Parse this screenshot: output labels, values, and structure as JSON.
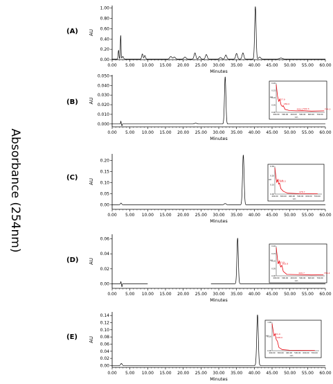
{
  "figure": {
    "y_title": "Absorbance (254nm)"
  },
  "colors": {
    "trace": "#000000",
    "axis": "#000000",
    "inset_line": "#e8000b",
    "inset_frame": "#000000"
  },
  "chart_data": [
    {
      "type": "line",
      "panel_label": "(A)",
      "ylabel": "AU",
      "xlabel": "Minutes",
      "xlim": [
        0,
        60
      ],
      "ylim": [
        0,
        1.05
      ],
      "x_ticks": [
        "0.00",
        "5.00",
        "10.00",
        "15.00",
        "20.00",
        "25.00",
        "30.00",
        "35.00",
        "40.00",
        "45.00",
        "50.00",
        "55.00",
        "60.00"
      ],
      "y_ticks": [
        "0.00",
        "0.20",
        "0.40",
        "0.60",
        "0.80",
        "1.00"
      ],
      "y_tick_values": [
        0,
        0.2,
        0.4,
        0.6,
        0.8,
        1.0
      ],
      "peaks": [
        {
          "rt": 1.8,
          "height": 0.17,
          "width": 0.12
        },
        {
          "rt": 2.4,
          "height": 0.46,
          "width": 0.1
        },
        {
          "rt": 3.0,
          "height": 0.05,
          "width": 0.2
        },
        {
          "rt": 8.5,
          "height": 0.1,
          "width": 0.18
        },
        {
          "rt": 9.2,
          "height": 0.07,
          "width": 0.18
        },
        {
          "rt": 16.5,
          "height": 0.05,
          "width": 0.3
        },
        {
          "rt": 17.5,
          "height": 0.04,
          "width": 0.3
        },
        {
          "rt": 20.5,
          "height": 0.04,
          "width": 0.3
        },
        {
          "rt": 23.3,
          "height": 0.12,
          "width": 0.25
        },
        {
          "rt": 24.6,
          "height": 0.05,
          "width": 0.25
        },
        {
          "rt": 26.5,
          "height": 0.09,
          "width": 0.25
        },
        {
          "rt": 30.5,
          "height": 0.03,
          "width": 0.3
        },
        {
          "rt": 32.0,
          "height": 0.08,
          "width": 0.25
        },
        {
          "rt": 35.0,
          "height": 0.11,
          "width": 0.25
        },
        {
          "rt": 36.8,
          "height": 0.12,
          "width": 0.25
        },
        {
          "rt": 40.3,
          "height": 1.02,
          "width": 0.2
        },
        {
          "rt": 41.5,
          "height": 0.04,
          "width": 0.3
        },
        {
          "rt": 47.5,
          "height": 0.02,
          "width": 0.4
        }
      ],
      "baseline": 0.01
    },
    {
      "type": "line",
      "panel_label": "(B)",
      "ylabel": "AU",
      "xlabel": "Minutes",
      "xlim": [
        0,
        60
      ],
      "ylim": [
        -0.003,
        0.051
      ],
      "x_ticks": [
        "0.00",
        "5.00",
        "10.00",
        "15.00",
        "20.00",
        "25.00",
        "30.00",
        "35.00",
        "40.00",
        "45.00",
        "50.00",
        "55.00",
        "60.00"
      ],
      "y_ticks": [
        "0.000",
        "0.010",
        "0.020",
        "0.030",
        "0.040",
        "0.050"
      ],
      "y_tick_values": [
        0,
        0.01,
        0.02,
        0.03,
        0.04,
        0.05
      ],
      "peaks": [
        {
          "rt": 31.8,
          "height": 0.049,
          "width": 0.2
        },
        {
          "rt": 23.5,
          "height": 0.0008,
          "width": 0.3
        }
      ],
      "disturbance": {
        "rt": 2.6,
        "up": 0.003,
        "down": -0.002
      },
      "baseline": 0.0,
      "inset": {
        "y_ticks": [
          "0.20",
          "0.15",
          "0.10",
          "0.05",
          "0.00"
        ],
        "x_ticks": [
          "200.00",
          "300.00",
          "400.00",
          "500.00",
          "600.00",
          "700.00"
        ],
        "x_label": "nm",
        "y_label": "AU",
        "peak_labels": [
          "227.9",
          "280.0",
          "429.2",
          "502.3",
          "744.3"
        ],
        "spectrum": [
          [
            200,
            0.19
          ],
          [
            215,
            0.11
          ],
          [
            228,
            0.075
          ],
          [
            240,
            0.09
          ],
          [
            255,
            0.05
          ],
          [
            270,
            0.04
          ],
          [
            280,
            0.045
          ],
          [
            300,
            0.02
          ],
          [
            350,
            0.012
          ],
          [
            429,
            0.01
          ],
          [
            502,
            0.011
          ],
          [
            600,
            0.008
          ],
          [
            744,
            0.01
          ]
        ]
      }
    },
    {
      "type": "line",
      "panel_label": "(C)",
      "ylabel": "AU",
      "xlabel": "Minutes",
      "xlim": [
        0,
        60
      ],
      "ylim": [
        -0.02,
        0.23
      ],
      "x_ticks": [
        "0.00",
        "5.00",
        "10.00",
        "15.00",
        "20.00",
        "25.00",
        "30.00",
        "35.00",
        "40.00",
        "45.00",
        "50.00",
        "55.00",
        "60.00"
      ],
      "y_ticks": [
        "0.00",
        "0.05",
        "0.10",
        "0.15",
        "0.20"
      ],
      "y_tick_values": [
        0,
        0.05,
        0.1,
        0.15,
        0.2
      ],
      "peaks": [
        {
          "rt": 36.9,
          "height": 0.225,
          "width": 0.22
        },
        {
          "rt": 2.5,
          "height": 0.008,
          "width": 0.2
        },
        {
          "rt": 31.8,
          "height": 0.006,
          "width": 0.3
        }
      ],
      "baseline": 0.0,
      "inset": {
        "y_ticks": [
          "0.30",
          "0.20",
          "0.10",
          "0.00"
        ],
        "x_ticks": [
          "200.00",
          "300.00",
          "400.00",
          "500.00",
          "600.00",
          "700.00"
        ],
        "x_label": "nm",
        "y_label": "AU",
        "peak_labels": [
          "221.9",
          "255.5",
          "478.7"
        ],
        "spectrum": [
          [
            200,
            0.29
          ],
          [
            215,
            0.17
          ],
          [
            222,
            0.13
          ],
          [
            235,
            0.16
          ],
          [
            245,
            0.11
          ],
          [
            255,
            0.12
          ],
          [
            270,
            0.06
          ],
          [
            300,
            0.03
          ],
          [
            350,
            0.01
          ],
          [
            479,
            0.005
          ],
          [
            700,
            0.003
          ]
        ]
      }
    },
    {
      "type": "line",
      "panel_label": "(D)",
      "ylabel": "AU",
      "xlabel": "Minutes",
      "xlim": [
        0,
        60
      ],
      "ylim": [
        -0.006,
        0.066
      ],
      "x_ticks": [
        "0.00",
        "5.00",
        "10.00",
        "15.00",
        "20.00",
        "25.00",
        "30.00",
        "35.00",
        "40.00",
        "45.00",
        "50.00",
        "55.00",
        "60.00"
      ],
      "y_ticks": [
        "0.00",
        "0.02",
        "0.04",
        "0.06"
      ],
      "y_tick_values": [
        0,
        0.02,
        0.04,
        0.06
      ],
      "peaks": [
        {
          "rt": 35.3,
          "height": 0.061,
          "width": 0.2
        }
      ],
      "disturbance": {
        "rt": 2.6,
        "up": 0.003,
        "down": -0.004
      },
      "gap": [
        10.0,
        27.8
      ],
      "baseline": 0.0,
      "inset": {
        "y_ticks": [
          "0.20",
          "0.15",
          "0.10",
          "0.05",
          "0.00"
        ],
        "x_ticks": [
          "200.00",
          "300.00",
          "400.00",
          "500.00",
          "600.00",
          "700.00"
        ],
        "x_label": "nm",
        "y_label": "AU",
        "peak_labels": [
          "221.9",
          "263.8",
          "449.7",
          "736.4"
        ],
        "spectrum": [
          [
            200,
            0.19
          ],
          [
            215,
            0.11
          ],
          [
            222,
            0.08
          ],
          [
            235,
            0.1
          ],
          [
            250,
            0.06
          ],
          [
            264,
            0.07
          ],
          [
            280,
            0.03
          ],
          [
            320,
            0.01
          ],
          [
            450,
            0.008
          ],
          [
            600,
            0.006
          ],
          [
            736,
            0.007
          ]
        ]
      }
    },
    {
      "type": "line",
      "panel_label": "(E)",
      "ylabel": "AU",
      "xlabel": "Minutes",
      "xlim": [
        0,
        60
      ],
      "ylim": [
        -0.005,
        0.15
      ],
      "x_ticks": [
        "0.00",
        "5.00",
        "10.00",
        "15.00",
        "20.00",
        "25.00",
        "30.00",
        "35.00",
        "40.00",
        "45.00",
        "50.00",
        "55.00",
        "60.00"
      ],
      "y_ticks": [
        "0.00",
        "0.02",
        "0.04",
        "0.06",
        "0.08",
        "0.10",
        "0.12",
        "0.14"
      ],
      "y_tick_values": [
        0,
        0.02,
        0.04,
        0.06,
        0.08,
        0.1,
        0.12,
        0.14
      ],
      "peaks": [
        {
          "rt": 40.9,
          "height": 0.142,
          "width": 0.22
        },
        {
          "rt": 2.6,
          "height": 0.006,
          "width": 0.2
        }
      ],
      "baseline": 0.0,
      "inset": {
        "y_ticks": [
          "1.00",
          "0.50",
          "0.00"
        ],
        "x_ticks": [
          "200.00",
          "300.00",
          "400.00",
          "500.00",
          "600.00",
          "700.00"
        ],
        "x_label": "nm",
        "y_label": "AU",
        "peak_labels": [
          "221.9",
          "248.0"
        ],
        "spectrum": [
          [
            200,
            1.0
          ],
          [
            212,
            0.75
          ],
          [
            222,
            0.55
          ],
          [
            235,
            0.62
          ],
          [
            248,
            0.42
          ],
          [
            262,
            0.35
          ],
          [
            280,
            0.12
          ],
          [
            320,
            0.04
          ],
          [
            400,
            0.02
          ],
          [
            700,
            0.01
          ]
        ]
      }
    }
  ]
}
